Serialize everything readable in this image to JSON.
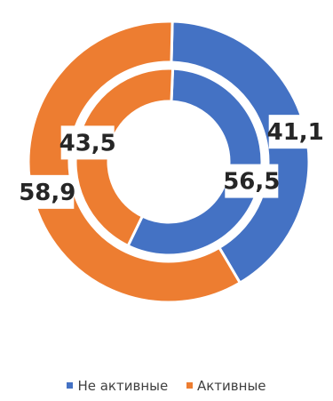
{
  "chart_data": {
    "type": "doughnut",
    "legend_position": "bottom",
    "series": [
      {
        "ring": "outer",
        "values": [
          41.1,
          58.9
        ],
        "labels": [
          "41,1",
          "58,9"
        ]
      },
      {
        "ring": "inner",
        "values": [
          56.5,
          43.5
        ],
        "labels": [
          "56,5",
          "43,5"
        ]
      }
    ],
    "categories": [
      {
        "name": "Не активные",
        "color": "#4472C4"
      },
      {
        "name": "Активные",
        "color": "#ED7D31"
      }
    ]
  }
}
